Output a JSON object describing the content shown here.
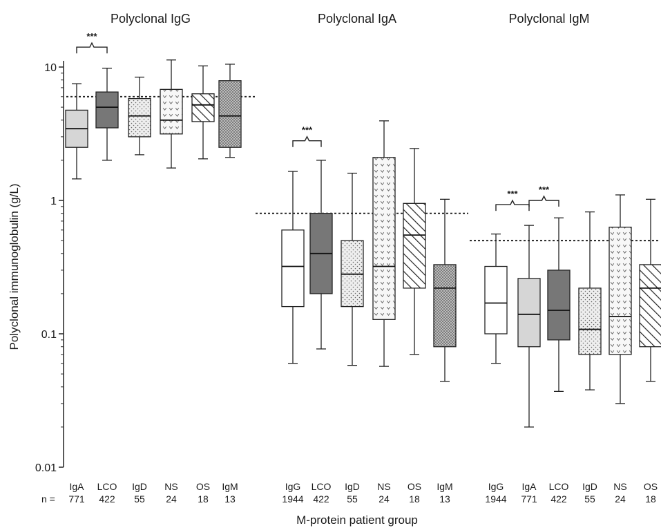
{
  "chart_data": {
    "type": "box",
    "ylabel": "Polyclonal immunoglobulin (g/L)",
    "xlabel": "M-protein patient group",
    "yscale": "log",
    "ylim": [
      0.01,
      12
    ],
    "yticks": [
      {
        "value": 0.01,
        "label": "0.01"
      },
      {
        "value": 0.1,
        "label": "0.1"
      },
      {
        "value": 1,
        "label": "1"
      },
      {
        "value": 10,
        "label": "10"
      }
    ],
    "n_label": "n =",
    "sig_label": "***",
    "panels": [
      {
        "title": "Polyclonal IgG",
        "reference_line": 6.0,
        "groups": [
          {
            "label": "IgA",
            "n": "771",
            "fill": "light",
            "min": 1.45,
            "q1": 2.5,
            "median": 3.45,
            "q3": 4.75,
            "max": 7.5
          },
          {
            "label": "LCO",
            "n": "422",
            "fill": "dark",
            "min": 2.0,
            "q1": 3.5,
            "median": 5.0,
            "q3": 6.5,
            "max": 9.8
          },
          {
            "label": "IgD",
            "n": "55",
            "fill": "dots",
            "min": 2.2,
            "q1": 3.0,
            "median": 4.3,
            "q3": 5.8,
            "max": 8.4
          },
          {
            "label": "NS",
            "n": "24",
            "fill": "hearts",
            "min": 1.75,
            "q1": 3.15,
            "median": 4.0,
            "q3": 6.8,
            "max": 11.3
          },
          {
            "label": "OS",
            "n": "18",
            "fill": "hatch",
            "min": 2.05,
            "q1": 3.9,
            "median": 5.2,
            "q3": 6.3,
            "max": 10.2
          },
          {
            "label": "IgM",
            "n": "13",
            "fill": "dense",
            "min": 2.1,
            "q1": 2.5,
            "median": 4.3,
            "q3": 7.9,
            "max": 10.5
          }
        ],
        "significance": [
          {
            "from": 0,
            "to": 1,
            "at": 14.1
          }
        ]
      },
      {
        "title": "Polyclonal IgA",
        "reference_line": 0.8,
        "groups": [
          {
            "label": "IgG",
            "n": "1944",
            "fill": "white",
            "min": 0.06,
            "q1": 0.16,
            "median": 0.32,
            "q3": 0.6,
            "max": 1.65
          },
          {
            "label": "LCO",
            "n": "422",
            "fill": "dark",
            "min": 0.077,
            "q1": 0.2,
            "median": 0.4,
            "q3": 0.8,
            "max": 2.0
          },
          {
            "label": "IgD",
            "n": "55",
            "fill": "dots",
            "min": 0.058,
            "q1": 0.16,
            "median": 0.28,
            "q3": 0.5,
            "max": 1.6
          },
          {
            "label": "NS",
            "n": "24",
            "fill": "hearts",
            "min": 0.057,
            "q1": 0.128,
            "median": 0.32,
            "q3": 2.1,
            "max": 3.95
          },
          {
            "label": "OS",
            "n": "18",
            "fill": "hatch",
            "min": 0.07,
            "q1": 0.22,
            "median": 0.55,
            "q3": 0.95,
            "max": 2.45
          },
          {
            "label": "IgM",
            "n": "13",
            "fill": "dense",
            "min": 0.044,
            "q1": 0.08,
            "median": 0.22,
            "q3": 0.33,
            "max": 1.02
          }
        ],
        "significance": [
          {
            "from": 0,
            "to": 1,
            "at": 2.8
          }
        ]
      },
      {
        "title": "Polyclonal IgM",
        "reference_line": 0.5,
        "groups": [
          {
            "label": "IgG",
            "n": "1944",
            "fill": "white",
            "min": 0.06,
            "q1": 0.1,
            "median": 0.17,
            "q3": 0.32,
            "max": 0.56
          },
          {
            "label": "IgA",
            "n": "771",
            "fill": "light",
            "min": 0.02,
            "q1": 0.08,
            "median": 0.14,
            "q3": 0.26,
            "max": 0.65
          },
          {
            "label": "LCO",
            "n": "422",
            "fill": "dark",
            "min": 0.037,
            "q1": 0.09,
            "median": 0.15,
            "q3": 0.3,
            "max": 0.74
          },
          {
            "label": "IgD",
            "n": "55",
            "fill": "dots",
            "min": 0.038,
            "q1": 0.07,
            "median": 0.108,
            "q3": 0.22,
            "max": 0.82
          },
          {
            "label": "NS",
            "n": "24",
            "fill": "hearts",
            "min": 0.03,
            "q1": 0.07,
            "median": 0.135,
            "q3": 0.63,
            "max": 1.1
          },
          {
            "label": "OS",
            "n": "18",
            "fill": "hatch",
            "min": 0.044,
            "q1": 0.08,
            "median": 0.22,
            "q3": 0.33,
            "max": 1.02
          }
        ],
        "significance": [
          {
            "from": 0,
            "to": 1,
            "at": 0.93
          },
          {
            "from": 1,
            "to": 2,
            "at": 1.0
          }
        ]
      }
    ]
  }
}
